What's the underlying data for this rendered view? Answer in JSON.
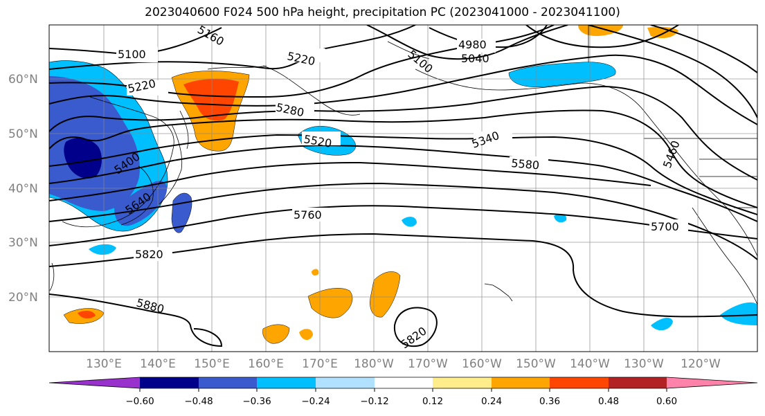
{
  "title": "2023040600 F024 500 hPa height, precipitation PC (2023041000 - 2023041100)",
  "map": {
    "lon_labels": [
      "130°E",
      "140°E",
      "150°E",
      "160°E",
      "170°E",
      "180°W",
      "170°W",
      "160°W",
      "150°W",
      "140°W",
      "130°W",
      "120°W"
    ],
    "lat_labels": [
      "60°N",
      "50°N",
      "40°N",
      "30°N",
      "20°N"
    ],
    "contour_labels": [
      "5100",
      "5220",
      "5160",
      "5280",
      "5340",
      "5400",
      "5460",
      "5520",
      "5580",
      "5640",
      "5700",
      "5760",
      "5820",
      "5880",
      "4980",
      "5040",
      "5220",
      "5820",
      "5100"
    ]
  },
  "colorbar": {
    "colors": [
      "#9932cc",
      "#00008b",
      "#3a5bcd",
      "#00bfff",
      "#b0e2ff",
      "#ffffff",
      "#ffec8b",
      "#ffa500",
      "#ff4500",
      "#b22222",
      "#ff82ab"
    ],
    "ticks": [
      "−0.60",
      "−0.48",
      "−0.36",
      "−0.24",
      "−0.12",
      "0.12",
      "0.24",
      "0.36",
      "0.48",
      "0.60"
    ]
  }
}
